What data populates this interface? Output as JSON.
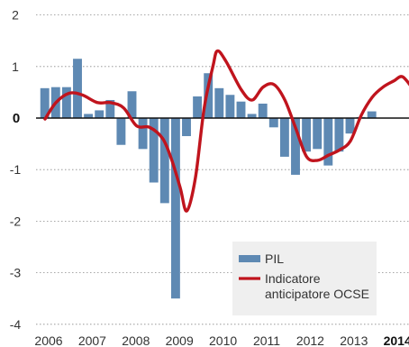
{
  "chart_data": {
    "type": "bar",
    "title": "",
    "xlabel": "",
    "ylabel": "",
    "ylim": [
      -4,
      2
    ],
    "yticks": [
      "2",
      "1",
      "0",
      "-1",
      "-2",
      "-3",
      "-4"
    ],
    "xticks": [
      "2006",
      "2007",
      "2008",
      "2009",
      "2010",
      "2011",
      "2012",
      "2013",
      "2014"
    ],
    "x_start_year": 2006,
    "grid": true,
    "legend_position": "bottom-right",
    "colors": {
      "bar": "#5e89b3",
      "line": "#c0141d",
      "zero": "#111111",
      "grid": "#8a8a8a",
      "legend_bg": "#efefef"
    },
    "series": [
      {
        "name": "PIL",
        "type": "bar",
        "values": [
          0.58,
          0.6,
          0.6,
          1.15,
          0.08,
          0.15,
          0.35,
          -0.52,
          0.52,
          -0.6,
          -1.25,
          -1.65,
          -3.5,
          -0.35,
          0.42,
          0.87,
          0.58,
          0.45,
          0.32,
          0.08,
          0.28,
          -0.18,
          -0.75,
          -1.1,
          -0.65,
          -0.6,
          -0.92,
          -0.65,
          -0.3,
          0.02,
          0.13
        ]
      },
      {
        "name": "Indicatore anticipatore OCSE",
        "type": "line",
        "points": [
          [
            2006.0,
            -0.02
          ],
          [
            2006.25,
            0.3
          ],
          [
            2006.55,
            0.48
          ],
          [
            2006.85,
            0.45
          ],
          [
            2007.2,
            0.3
          ],
          [
            2007.5,
            0.3
          ],
          [
            2007.8,
            0.2
          ],
          [
            2008.1,
            -0.15
          ],
          [
            2008.4,
            -0.18
          ],
          [
            2008.7,
            -0.4
          ],
          [
            2008.9,
            -0.8
          ],
          [
            2009.1,
            -1.35
          ],
          [
            2009.25,
            -1.8
          ],
          [
            2009.45,
            -1.15
          ],
          [
            2009.65,
            0.2
          ],
          [
            2009.85,
            1.0
          ],
          [
            2009.95,
            1.3
          ],
          [
            2010.15,
            1.1
          ],
          [
            2010.5,
            0.55
          ],
          [
            2010.75,
            0.35
          ],
          [
            2011.0,
            0.6
          ],
          [
            2011.25,
            0.65
          ],
          [
            2011.5,
            0.35
          ],
          [
            2011.75,
            -0.2
          ],
          [
            2012.0,
            -0.75
          ],
          [
            2012.25,
            -0.82
          ],
          [
            2012.5,
            -0.72
          ],
          [
            2012.75,
            -0.62
          ],
          [
            2013.0,
            -0.45
          ],
          [
            2013.25,
            0.05
          ],
          [
            2013.5,
            0.4
          ],
          [
            2013.75,
            0.6
          ],
          [
            2014.0,
            0.72
          ],
          [
            2014.2,
            0.8
          ],
          [
            2014.45,
            0.55
          ]
        ]
      }
    ]
  }
}
